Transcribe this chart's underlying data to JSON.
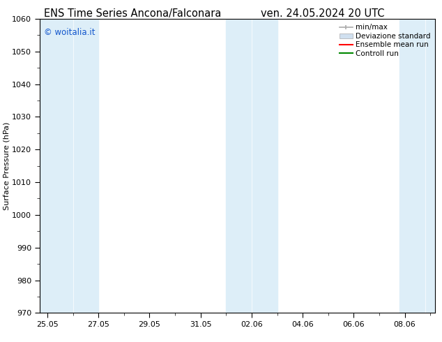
{
  "title_left": "ENS Time Series Ancona/Falconara",
  "title_right": "ven. 24.05.2024 20 UTC",
  "ylabel": "Surface Pressure (hPa)",
  "ylim": [
    970,
    1060
  ],
  "yticks": [
    970,
    980,
    990,
    1000,
    1010,
    1020,
    1030,
    1040,
    1050,
    1060
  ],
  "x_tick_labels": [
    "25.05",
    "27.05",
    "29.05",
    "31.05",
    "02.06",
    "04.06",
    "06.06",
    "08.06"
  ],
  "shade_color": "#ddeef8",
  "copyright_text": "© woitalia.it",
  "copyright_color": "#1155cc",
  "legend_minmax_color": "#aaaaaa",
  "legend_dev_color": "#cccccc",
  "legend_ens_color": "#ff0000",
  "legend_ctrl_color": "#008800",
  "background_color": "#ffffff",
  "title_fontsize": 10.5,
  "axis_label_fontsize": 8,
  "tick_fontsize": 8,
  "legend_fontsize": 7.5
}
